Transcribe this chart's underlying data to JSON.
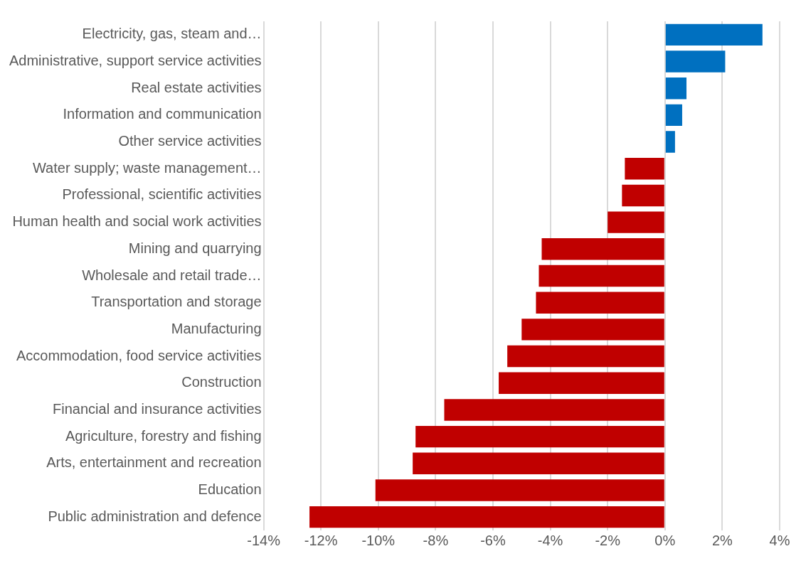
{
  "chart_data": {
    "type": "bar",
    "orientation": "horizontal",
    "categories": [
      "Electricity, gas, steam and…",
      "Administrative, support service activities",
      "Real estate activities",
      "Information and communication",
      "Other service activities",
      "Water supply; waste management…",
      "Professional, scientific activities",
      "Human health and social work activities",
      "Mining and quarrying",
      "Wholesale and retail trade…",
      "Transportation and storage",
      "Manufacturing",
      "Accommodation, food service activities",
      "Construction",
      "Financial and insurance activities",
      "Agriculture, forestry and fishing",
      "Arts, entertainment and recreation",
      "Education",
      "Public administration and defence"
    ],
    "values": [
      3.4,
      2.1,
      0.75,
      0.6,
      0.35,
      -1.4,
      -1.5,
      -2.0,
      -4.3,
      -4.4,
      -4.5,
      -5.0,
      -5.5,
      -5.8,
      -7.7,
      -8.7,
      -8.8,
      -10.1,
      -12.4
    ],
    "colors": [
      "#0070c0",
      "#0070c0",
      "#0070c0",
      "#0070c0",
      "#0070c0",
      "#c00000",
      "#c00000",
      "#c00000",
      "#c00000",
      "#c00000",
      "#c00000",
      "#c00000",
      "#c00000",
      "#c00000",
      "#c00000",
      "#c00000",
      "#c00000",
      "#c00000",
      "#c00000"
    ],
    "xlim": [
      -14,
      4
    ],
    "xticks": [
      {
        "value": -14,
        "label": "-14%"
      },
      {
        "value": -12,
        "label": "-12%"
      },
      {
        "value": -10,
        "label": "-10%"
      },
      {
        "value": -8,
        "label": "-8%"
      },
      {
        "value": -6,
        "label": "-6%"
      },
      {
        "value": -4,
        "label": "-4%"
      },
      {
        "value": -2,
        "label": "-2%"
      },
      {
        "value": 0,
        "label": "0%"
      },
      {
        "value": 2,
        "label": "2%"
      },
      {
        "value": 4,
        "label": "4%"
      }
    ],
    "grid": "x",
    "legend": false
  }
}
